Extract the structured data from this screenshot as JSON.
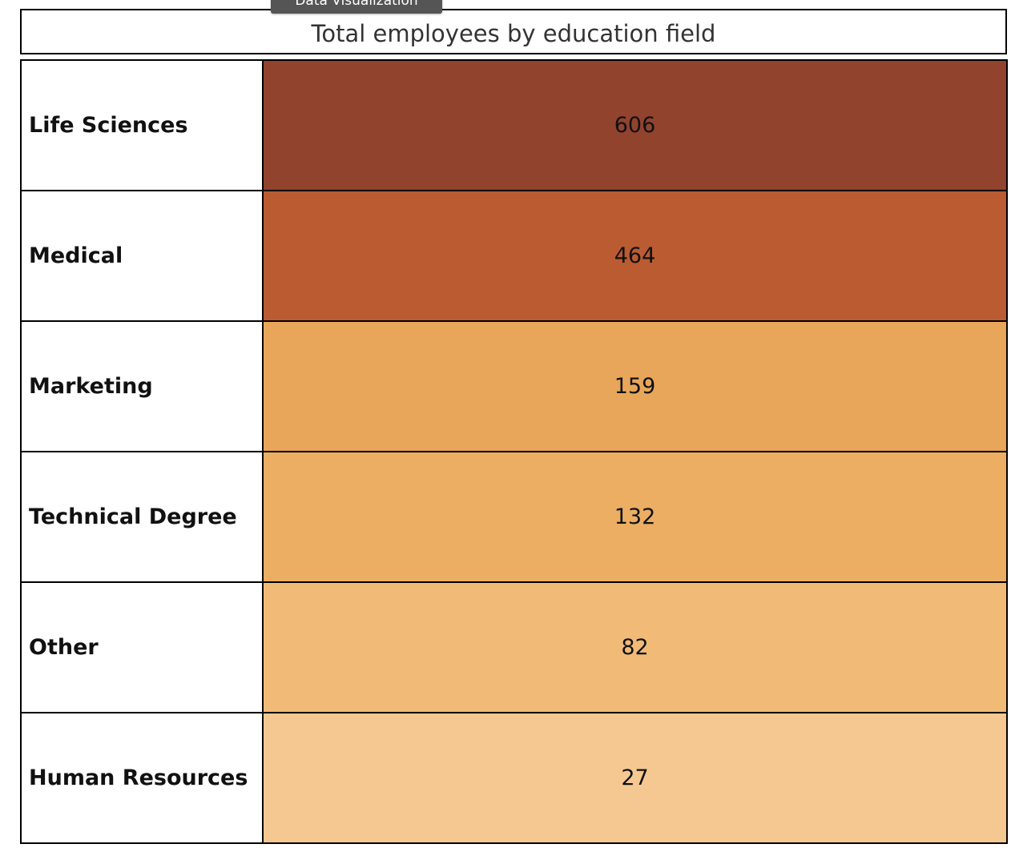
{
  "tooltip": {
    "label": "Data Visualization"
  },
  "chart_data": {
    "type": "heatmap",
    "title": "Total employees by education field",
    "categories": [
      "Life Sciences",
      "Medical",
      "Marketing",
      "Technical Degree",
      "Other",
      "Human Resources"
    ],
    "values": [
      606,
      464,
      159,
      132,
      82,
      27
    ],
    "colors": [
      "#91432d",
      "#ba5b32",
      "#e8a65a",
      "#ebae63",
      "#f1bb77",
      "#f5c892"
    ],
    "grid": true
  }
}
